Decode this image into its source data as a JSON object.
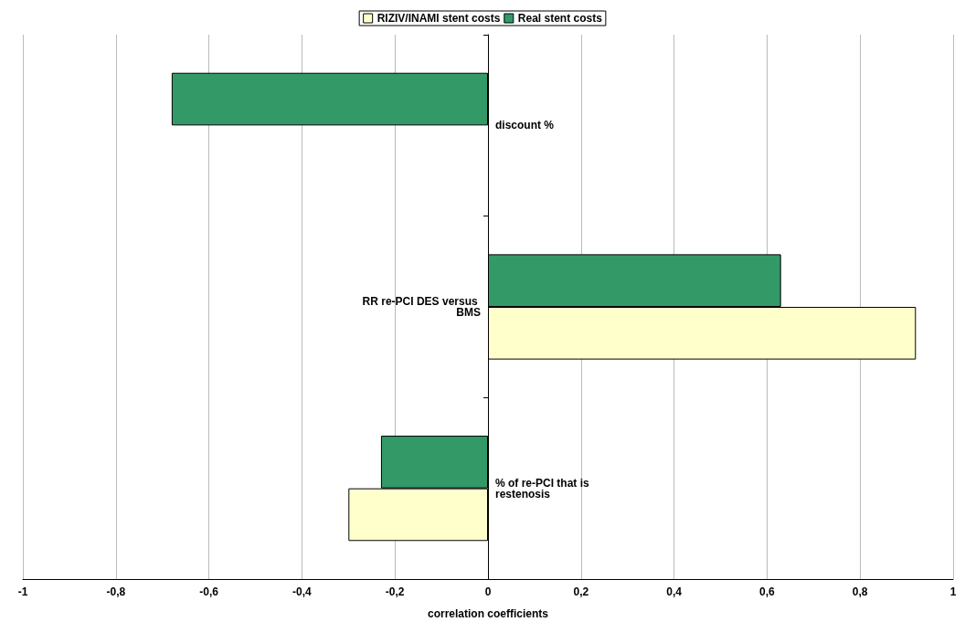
{
  "chart_data": {
    "type": "bar",
    "orientation": "horizontal",
    "categories": [
      "discount %",
      "RR re-PCI DES versus BMS",
      "% of re-PCI that is restenosis"
    ],
    "series": [
      {
        "name": "RIZIV/INAMI stent costs",
        "color": "#ffffcc",
        "values": [
          null,
          0.92,
          -0.3
        ]
      },
      {
        "name": "Real stent costs",
        "color": "#339966",
        "values": [
          -0.68,
          0.63,
          -0.23
        ]
      }
    ],
    "xlabel": "correlation coefficients",
    "xlim": [
      -1,
      1
    ],
    "xticks": [
      {
        "value": -1,
        "label": "-1"
      },
      {
        "value": -0.8,
        "label": "-0,8"
      },
      {
        "value": -0.6,
        "label": "-0,6"
      },
      {
        "value": -0.4,
        "label": "-0,4"
      },
      {
        "value": -0.2,
        "label": "-0,2"
      },
      {
        "value": 0,
        "label": "0"
      },
      {
        "value": 0.2,
        "label": "0,2"
      },
      {
        "value": 0.4,
        "label": "0,4"
      },
      {
        "value": 0.6,
        "label": "0,6"
      },
      {
        "value": 0.8,
        "label": "0,8"
      },
      {
        "value": 1,
        "label": "1"
      }
    ],
    "grid": "x",
    "legend": "top"
  }
}
